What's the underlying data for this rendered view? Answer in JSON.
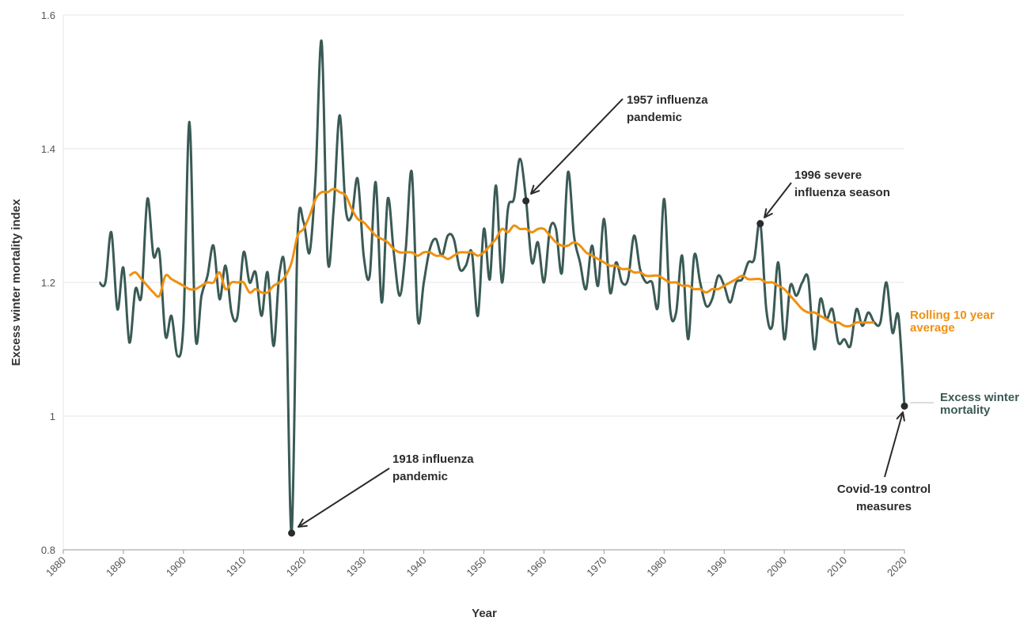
{
  "colors": {
    "mortality": "#3a5a55",
    "rolling": "#f0900f",
    "grid": "#e6e6e6",
    "axis": "#999999",
    "annotation": "#2b2b2b"
  },
  "chart_data": {
    "type": "line",
    "xlabel": "Year",
    "ylabel": "Excess winter mortality index",
    "xlim": [
      1880,
      2020
    ],
    "ylim": [
      0.8,
      1.6
    ],
    "x_ticks": [
      "1880",
      "1890",
      "1900",
      "1910",
      "1920",
      "1930",
      "1940",
      "1950",
      "1960",
      "1970",
      "1980",
      "1990",
      "2000",
      "2010",
      "2020"
    ],
    "y_ticks": [
      "0.8",
      "1",
      "1.2",
      "1.4",
      "1.6"
    ],
    "grid": true,
    "series": [
      {
        "name": "Excess winter mortality",
        "label_lines": [
          "Excess winter",
          "mortality"
        ],
        "x": [
          1886,
          1887,
          1888,
          1889,
          1890,
          1891,
          1892,
          1893,
          1894,
          1895,
          1896,
          1897,
          1898,
          1899,
          1900,
          1901,
          1902,
          1903,
          1904,
          1905,
          1906,
          1907,
          1908,
          1909,
          1910,
          1911,
          1912,
          1913,
          1914,
          1915,
          1916,
          1917,
          1918,
          1919,
          1920,
          1921,
          1922,
          1923,
          1924,
          1925,
          1926,
          1927,
          1928,
          1929,
          1930,
          1931,
          1932,
          1933,
          1934,
          1935,
          1936,
          1937,
          1938,
          1939,
          1940,
          1941,
          1942,
          1943,
          1944,
          1945,
          1946,
          1947,
          1948,
          1949,
          1950,
          1951,
          1952,
          1953,
          1954,
          1955,
          1956,
          1957,
          1958,
          1959,
          1960,
          1961,
          1962,
          1963,
          1964,
          1965,
          1966,
          1967,
          1968,
          1969,
          1970,
          1971,
          1972,
          1973,
          1974,
          1975,
          1976,
          1977,
          1978,
          1979,
          1980,
          1981,
          1982,
          1983,
          1984,
          1985,
          1986,
          1987,
          1988,
          1989,
          1990,
          1991,
          1992,
          1993,
          1994,
          1995,
          1996,
          1997,
          1998,
          1999,
          2000,
          2001,
          2002,
          2003,
          2004,
          2005,
          2006,
          2007,
          2008,
          2009,
          2010,
          2011,
          2012,
          2013,
          2014,
          2015,
          2016,
          2017,
          2018,
          2019,
          2020
        ],
        "y": [
          1.2,
          1.2,
          1.275,
          1.16,
          1.222,
          1.11,
          1.19,
          1.18,
          1.325,
          1.24,
          1.245,
          1.12,
          1.15,
          1.09,
          1.14,
          1.44,
          1.12,
          1.18,
          1.21,
          1.255,
          1.175,
          1.225,
          1.155,
          1.15,
          1.245,
          1.2,
          1.215,
          1.15,
          1.215,
          1.105,
          1.215,
          1.2,
          0.825,
          1.27,
          1.29,
          1.245,
          1.36,
          1.56,
          1.235,
          1.31,
          1.45,
          1.31,
          1.3,
          1.355,
          1.24,
          1.21,
          1.35,
          1.17,
          1.325,
          1.245,
          1.18,
          1.25,
          1.365,
          1.145,
          1.2,
          1.25,
          1.265,
          1.24,
          1.27,
          1.265,
          1.22,
          1.225,
          1.245,
          1.15,
          1.28,
          1.205,
          1.345,
          1.2,
          1.31,
          1.325,
          1.385,
          1.325,
          1.23,
          1.26,
          1.2,
          1.28,
          1.28,
          1.215,
          1.365,
          1.27,
          1.23,
          1.19,
          1.255,
          1.195,
          1.295,
          1.185,
          1.23,
          1.2,
          1.205,
          1.27,
          1.22,
          1.2,
          1.2,
          1.165,
          1.325,
          1.16,
          1.155,
          1.24,
          1.115,
          1.24,
          1.2,
          1.165,
          1.175,
          1.21,
          1.195,
          1.17,
          1.2,
          1.205,
          1.23,
          1.235,
          1.29,
          1.16,
          1.135,
          1.23,
          1.115,
          1.195,
          1.18,
          1.2,
          1.205,
          1.1,
          1.175,
          1.145,
          1.16,
          1.11,
          1.115,
          1.105,
          1.16,
          1.135,
          1.155,
          1.14,
          1.14,
          1.2,
          1.125,
          1.15,
          1.015
        ]
      },
      {
        "name": "Rolling 10 year average",
        "label_lines": [
          "Rolling 10 year",
          "average"
        ],
        "x": [
          1891,
          1892,
          1893,
          1894,
          1895,
          1896,
          1897,
          1898,
          1899,
          1900,
          1901,
          1902,
          1903,
          1904,
          1905,
          1906,
          1907,
          1908,
          1909,
          1910,
          1911,
          1912,
          1913,
          1914,
          1915,
          1916,
          1917,
          1918,
          1919,
          1920,
          1921,
          1922,
          1923,
          1924,
          1925,
          1926,
          1927,
          1928,
          1929,
          1930,
          1931,
          1932,
          1933,
          1934,
          1935,
          1936,
          1937,
          1938,
          1939,
          1940,
          1941,
          1942,
          1943,
          1944,
          1945,
          1946,
          1947,
          1948,
          1949,
          1950,
          1951,
          1952,
          1953,
          1954,
          1955,
          1956,
          1957,
          1958,
          1959,
          1960,
          1961,
          1962,
          1963,
          1964,
          1965,
          1966,
          1967,
          1968,
          1969,
          1970,
          1971,
          1972,
          1973,
          1974,
          1975,
          1976,
          1977,
          1978,
          1979,
          1980,
          1981,
          1982,
          1983,
          1984,
          1985,
          1986,
          1987,
          1988,
          1989,
          1990,
          1991,
          1992,
          1993,
          1994,
          1995,
          1996,
          1997,
          1998,
          1999,
          2000,
          2001,
          2002,
          2003,
          2004,
          2005,
          2006,
          2007,
          2008,
          2009,
          2010,
          2011,
          2012,
          2013,
          2014,
          2015
        ],
        "y": [
          1.21,
          1.215,
          1.205,
          1.195,
          1.185,
          1.18,
          1.21,
          1.205,
          1.2,
          1.195,
          1.19,
          1.19,
          1.195,
          1.2,
          1.2,
          1.215,
          1.19,
          1.2,
          1.2,
          1.2,
          1.185,
          1.19,
          1.185,
          1.185,
          1.195,
          1.2,
          1.21,
          1.23,
          1.27,
          1.28,
          1.3,
          1.325,
          1.335,
          1.335,
          1.34,
          1.335,
          1.33,
          1.31,
          1.295,
          1.29,
          1.28,
          1.27,
          1.265,
          1.26,
          1.25,
          1.245,
          1.245,
          1.245,
          1.24,
          1.245,
          1.245,
          1.24,
          1.24,
          1.235,
          1.24,
          1.245,
          1.245,
          1.245,
          1.24,
          1.245,
          1.255,
          1.265,
          1.28,
          1.275,
          1.285,
          1.28,
          1.28,
          1.275,
          1.28,
          1.28,
          1.27,
          1.26,
          1.255,
          1.255,
          1.26,
          1.255,
          1.245,
          1.24,
          1.235,
          1.23,
          1.225,
          1.225,
          1.22,
          1.22,
          1.215,
          1.215,
          1.21,
          1.21,
          1.21,
          1.205,
          1.2,
          1.2,
          1.195,
          1.195,
          1.19,
          1.19,
          1.185,
          1.19,
          1.19,
          1.195,
          1.2,
          1.205,
          1.21,
          1.205,
          1.205,
          1.205,
          1.2,
          1.2,
          1.195,
          1.19,
          1.18,
          1.17,
          1.16,
          1.155,
          1.155,
          1.15,
          1.145,
          1.14,
          1.14,
          1.135,
          1.135,
          1.14,
          1.14,
          1.14,
          1.14
        ]
      }
    ],
    "annotations": [
      {
        "lines": [
          "1918 influenza",
          "pandemic"
        ],
        "x": 1918,
        "y": 0.825
      },
      {
        "lines": [
          "1957 influenza",
          "pandemic"
        ],
        "x": 1957,
        "y": 1.322
      },
      {
        "lines": [
          "1996 severe",
          "influenza season"
        ],
        "x": 1996,
        "y": 1.288
      },
      {
        "lines": [
          "Covid-19 control",
          "measures"
        ],
        "x": 2020,
        "y": 1.015
      }
    ]
  }
}
